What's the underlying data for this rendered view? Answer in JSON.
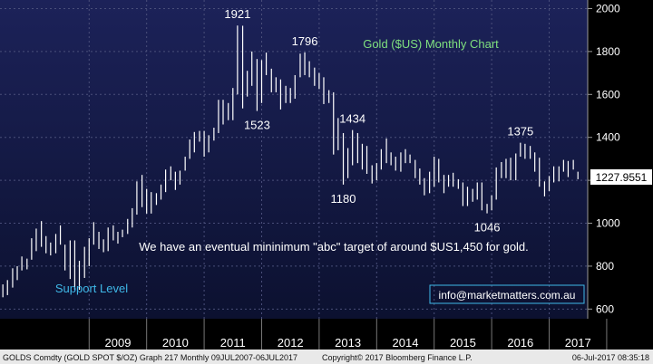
{
  "chart_data": {
    "type": "bar",
    "subtype": "ohlc",
    "title": "Gold ($US) Monthly Chart",
    "ylim": [
      555,
      2040
    ],
    "y_ticks": [
      600,
      800,
      1000,
      1200,
      1400,
      1600,
      1800,
      2000
    ],
    "x_labels": [
      "2009",
      "2010",
      "2011",
      "2012",
      "2013",
      "2014",
      "2015",
      "2016",
      "2017"
    ],
    "last_price": "1227.9551",
    "series": [
      {
        "name": "GOLD SPOT $/OZ",
        "points": [
          [
            2007.5,
            655,
            715
          ],
          [
            2007.58,
            665,
            735
          ],
          [
            2007.67,
            700,
            790
          ],
          [
            2007.75,
            735,
            800
          ],
          [
            2007.83,
            780,
            845
          ],
          [
            2007.92,
            785,
            835
          ],
          [
            2008.0,
            830,
            930
          ],
          [
            2008.08,
            870,
            975
          ],
          [
            2008.17,
            890,
            1010
          ],
          [
            2008.25,
            860,
            940
          ],
          [
            2008.33,
            850,
            910
          ],
          [
            2008.42,
            860,
            950
          ],
          [
            2008.5,
            900,
            990
          ],
          [
            2008.58,
            780,
            900
          ],
          [
            2008.67,
            740,
            920
          ],
          [
            2008.75,
            690,
            920
          ],
          [
            2008.83,
            690,
            825
          ],
          [
            2008.92,
            745,
            890
          ],
          [
            2009.0,
            800,
            930
          ],
          [
            2009.08,
            900,
            1005
          ],
          [
            2009.17,
            880,
            960
          ],
          [
            2009.25,
            865,
            925
          ],
          [
            2009.33,
            870,
            980
          ],
          [
            2009.42,
            920,
            990
          ],
          [
            2009.5,
            905,
            960
          ],
          [
            2009.58,
            935,
            970
          ],
          [
            2009.67,
            950,
            1020
          ],
          [
            2009.75,
            980,
            1070
          ],
          [
            2009.83,
            1040,
            1195
          ],
          [
            2009.92,
            1075,
            1225
          ],
          [
            2010.0,
            1045,
            1160
          ],
          [
            2010.08,
            1045,
            1145
          ],
          [
            2010.17,
            1085,
            1140
          ],
          [
            2010.25,
            1110,
            1180
          ],
          [
            2010.33,
            1145,
            1250
          ],
          [
            2010.42,
            1200,
            1265
          ],
          [
            2010.5,
            1155,
            1240
          ],
          [
            2010.58,
            1180,
            1245
          ],
          [
            2010.67,
            1245,
            1310
          ],
          [
            2010.75,
            1300,
            1390
          ],
          [
            2010.83,
            1330,
            1425
          ],
          [
            2010.92,
            1380,
            1430
          ],
          [
            2011.0,
            1310,
            1430
          ],
          [
            2011.08,
            1330,
            1410
          ],
          [
            2011.17,
            1385,
            1445
          ],
          [
            2011.25,
            1420,
            1575
          ],
          [
            2011.33,
            1460,
            1575
          ],
          [
            2011.42,
            1480,
            1560
          ],
          [
            2011.5,
            1480,
            1630
          ],
          [
            2011.58,
            1600,
            1921
          ],
          [
            2011.67,
            1535,
            1920
          ],
          [
            2011.75,
            1590,
            1710
          ],
          [
            2011.83,
            1640,
            1800
          ],
          [
            2011.92,
            1523,
            1765
          ],
          [
            2012.0,
            1560,
            1760
          ],
          [
            2012.08,
            1690,
            1795
          ],
          [
            2012.17,
            1610,
            1720
          ],
          [
            2012.25,
            1610,
            1680
          ],
          [
            2012.33,
            1530,
            1670
          ],
          [
            2012.42,
            1560,
            1640
          ],
          [
            2012.5,
            1560,
            1630
          ],
          [
            2012.58,
            1580,
            1690
          ],
          [
            2012.67,
            1680,
            1790
          ],
          [
            2012.75,
            1690,
            1796
          ],
          [
            2012.83,
            1680,
            1755
          ],
          [
            2012.92,
            1640,
            1725
          ],
          [
            2013.0,
            1625,
            1700
          ],
          [
            2013.08,
            1555,
            1680
          ],
          [
            2013.17,
            1560,
            1620
          ],
          [
            2013.25,
            1320,
            1610
          ],
          [
            2013.33,
            1340,
            1490
          ],
          [
            2013.42,
            1180,
            1420
          ],
          [
            2013.5,
            1210,
            1350
          ],
          [
            2013.58,
            1270,
            1434
          ],
          [
            2013.67,
            1280,
            1420
          ],
          [
            2013.75,
            1250,
            1370
          ],
          [
            2013.83,
            1230,
            1360
          ],
          [
            2013.92,
            1185,
            1270
          ],
          [
            2014.0,
            1200,
            1280
          ],
          [
            2014.08,
            1250,
            1345
          ],
          [
            2014.17,
            1280,
            1395
          ],
          [
            2014.25,
            1270,
            1330
          ],
          [
            2014.33,
            1245,
            1310
          ],
          [
            2014.42,
            1240,
            1330
          ],
          [
            2014.5,
            1280,
            1345
          ],
          [
            2014.58,
            1280,
            1320
          ],
          [
            2014.67,
            1210,
            1295
          ],
          [
            2014.75,
            1180,
            1255
          ],
          [
            2014.83,
            1130,
            1210
          ],
          [
            2014.92,
            1140,
            1240
          ],
          [
            2015.0,
            1170,
            1310
          ],
          [
            2015.08,
            1190,
            1300
          ],
          [
            2015.17,
            1140,
            1225
          ],
          [
            2015.25,
            1170,
            1225
          ],
          [
            2015.33,
            1170,
            1235
          ],
          [
            2015.42,
            1160,
            1205
          ],
          [
            2015.5,
            1080,
            1190
          ],
          [
            2015.58,
            1080,
            1170
          ],
          [
            2015.67,
            1100,
            1160
          ],
          [
            2015.75,
            1110,
            1190
          ],
          [
            2015.83,
            1060,
            1190
          ],
          [
            2015.92,
            1046,
            1090
          ],
          [
            2016.0,
            1060,
            1130
          ],
          [
            2016.08,
            1110,
            1260
          ],
          [
            2016.17,
            1210,
            1285
          ],
          [
            2016.25,
            1210,
            1300
          ],
          [
            2016.33,
            1200,
            1305
          ],
          [
            2016.42,
            1200,
            1325
          ],
          [
            2016.5,
            1310,
            1375
          ],
          [
            2016.58,
            1300,
            1370
          ],
          [
            2016.67,
            1300,
            1360
          ],
          [
            2016.75,
            1240,
            1330
          ],
          [
            2016.83,
            1170,
            1305
          ],
          [
            2016.92,
            1125,
            1195
          ],
          [
            2017.0,
            1150,
            1220
          ],
          [
            2017.08,
            1190,
            1265
          ],
          [
            2017.17,
            1195,
            1265
          ],
          [
            2017.25,
            1240,
            1295
          ],
          [
            2017.33,
            1215,
            1290
          ],
          [
            2017.42,
            1250,
            1295
          ],
          [
            2017.5,
            1205,
            1240
          ]
        ]
      }
    ],
    "annotations": [
      {
        "text": "1921",
        "x": 2011.58,
        "y": 1921
      },
      {
        "text": "1796",
        "x": 2012.75,
        "y": 1796
      },
      {
        "text": "1523",
        "x": 2011.92,
        "y": 1523
      },
      {
        "text": "1434",
        "x": 2013.58,
        "y": 1434
      },
      {
        "text": "1180",
        "x": 2013.42,
        "y": 1180
      },
      {
        "text": "1375",
        "x": 2016.5,
        "y": 1375
      },
      {
        "text": "1046",
        "x": 2015.92,
        "y": 1046
      }
    ],
    "note": "We have an eventual mininimum \"abc\" target of around $US1,450 for gold.",
    "support_label": "Support Level"
  },
  "contact": "info@marketmatters.com.au",
  "footer": {
    "left": "GOLDS Comdty (GOLD SPOT $/OZ) Graph 217  Monthly 09JUL2007-06JUL2017",
    "center": "Copyright© 2017 Bloomberg Finance L.P.",
    "right": "06-Jul-2017 08:35:18"
  },
  "colors": {
    "plot_bg_top": "#1c2259",
    "plot_bg_bottom": "#0c1130",
    "grid": "#4a4f7a",
    "bar": "#ffffff",
    "title": "#7fe07f",
    "support": "#3fb8e8",
    "price_box": "#ffffff",
    "axis_bg": "#000000"
  }
}
